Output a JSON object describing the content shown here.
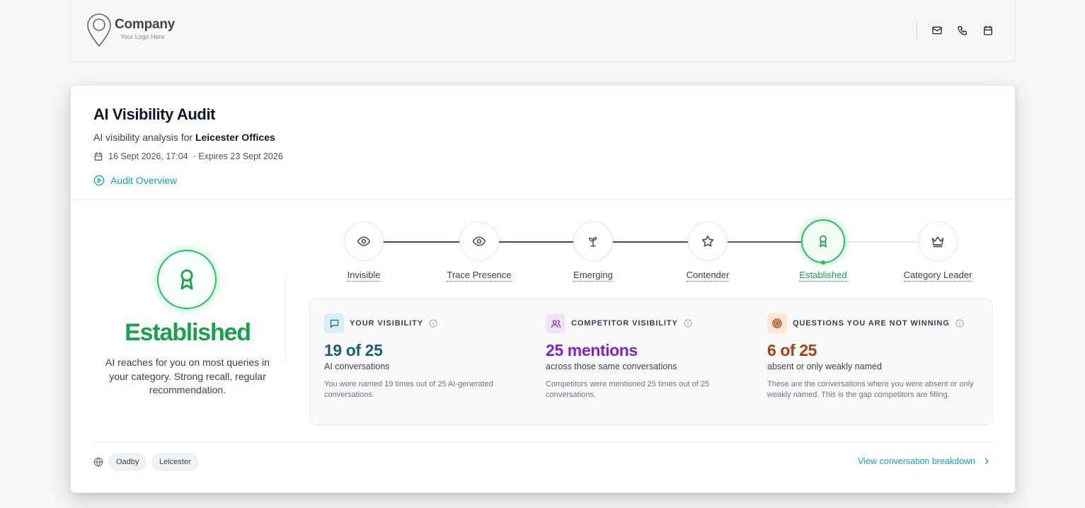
{
  "header": {
    "logo_name": "Company",
    "logo_tagline": "Your Logo Here",
    "icons": [
      "mail-icon",
      "phone-icon",
      "calendar-icon"
    ]
  },
  "audit": {
    "title": "AI Visibility Audit",
    "subtitle_prefix": "AI visibility analysis for ",
    "business_name": "Leicester Offices",
    "date": "16 Sept 2026, 17:04",
    "expires": "· Expires 23 Sept 2026",
    "overview_link": "Audit Overview"
  },
  "status": {
    "label": "Established",
    "description": "AI reaches for you on most queries in your category. Strong recall, regular recommendation.",
    "accent": "#16a34a"
  },
  "stages": [
    {
      "label": "Invisible",
      "icon": "eye-icon"
    },
    {
      "label": "Trace Presence",
      "icon": "eye-icon"
    },
    {
      "label": "Emerging",
      "icon": "sprout-icon"
    },
    {
      "label": "Contender",
      "icon": "star-icon"
    },
    {
      "label": "Established",
      "icon": "award-icon",
      "current": true
    },
    {
      "label": "Category Leader",
      "icon": "crown-icon"
    }
  ],
  "metrics": [
    {
      "title": "YOUR VISIBILITY",
      "icon": "message-icon",
      "value": "19 of 25",
      "caption": "AI conversations",
      "note": "You were named 19 times out of 25 AI-generated conversations.",
      "color": "#1a5f7a"
    },
    {
      "title": "COMPETITOR VISIBILITY",
      "icon": "users-icon",
      "value": "25 mentions",
      "caption": "across those same conversations",
      "note": "Competitors were mentioned 25 times out of 25 conversations.",
      "color": "#7e22ce"
    },
    {
      "title": "QUESTIONS YOU ARE NOT WINNING",
      "icon": "target-icon",
      "value": "6 of 25",
      "caption": "absent or only weakly named",
      "note": "These are the conversations where you were absent or only weakly named. This is the gap competitors are filling.",
      "color": "#a8400f"
    }
  ],
  "footer": {
    "locations": [
      "Oadby",
      "Leicester"
    ],
    "breakdown_link": "View conversation breakdown"
  }
}
